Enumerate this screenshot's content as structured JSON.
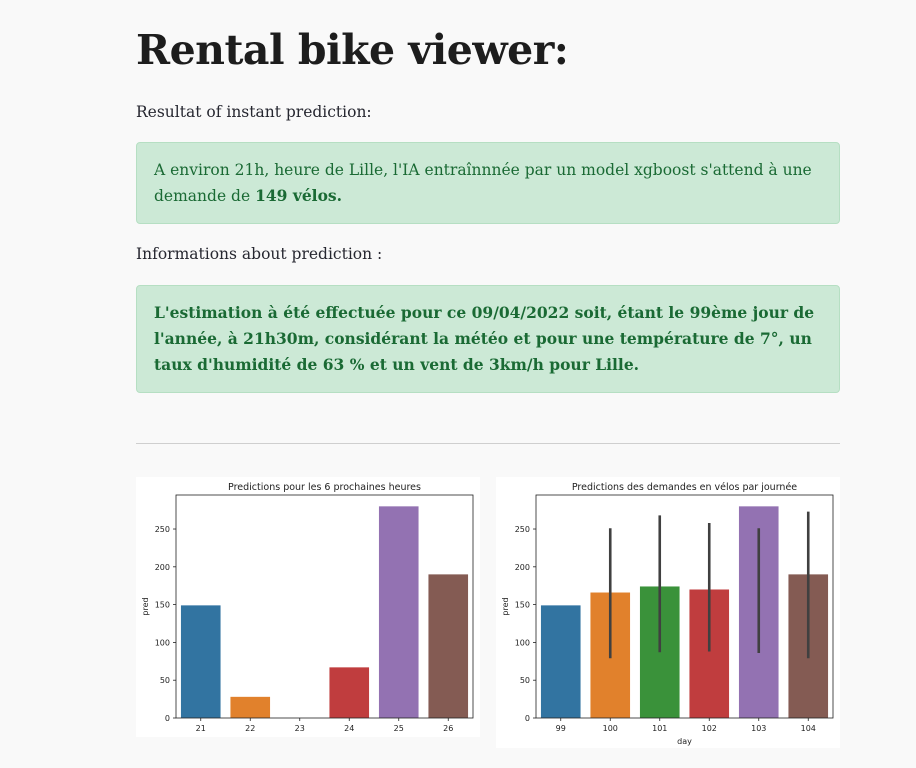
{
  "page": {
    "title": "Rental bike viewer:",
    "instant_label": "Resultat of instant prediction:",
    "instant_text_prefix": "A environ 21h, heure de Lille, l'IA entraînnnée par un model xgboost s'attend à une demande de ",
    "instant_text_bold": "149 vélos.",
    "info_label": "Informations about prediction :",
    "info_text": "L'estimation à été effectuée pour ce 09/04/2022 soit, étant le 99ème jour de l'année, à 21h30m, considérant la météo et pour une température de 7°, un taux d'humidité de 63 % et un vent de 3km/h pour Lille."
  },
  "colors": {
    "success_bg": "#cce9d6",
    "success_text": "#1a6a34",
    "palette": [
      "#3274a1",
      "#e1812c",
      "#3a923a",
      "#c03d3e",
      "#9372b2",
      "#845b53"
    ]
  },
  "chart_data": [
    {
      "type": "bar",
      "title": "Predictions pour les 6 prochaines heures",
      "xlabel": "",
      "ylabel": "pred",
      "categories": [
        "21",
        "22",
        "23",
        "24",
        "25",
        "26"
      ],
      "values": [
        149,
        28,
        0,
        67,
        280,
        190
      ],
      "yticks": [
        "0",
        "50",
        "100",
        "150",
        "200",
        "250"
      ],
      "ylim": [
        0,
        295
      ],
      "error_bars": false
    },
    {
      "type": "bar",
      "title": "Predictions des demandes en vélos par journée",
      "xlabel": "day",
      "ylabel": "pred",
      "categories": [
        "99",
        "100",
        "101",
        "102",
        "103",
        "104"
      ],
      "values": [
        149,
        166,
        174,
        170,
        280,
        190
      ],
      "error_low": [
        null,
        79,
        87,
        88,
        86,
        79
      ],
      "error_high": [
        null,
        251,
        268,
        258,
        251,
        273
      ],
      "yticks": [
        "0",
        "50",
        "100",
        "150",
        "200",
        "250"
      ],
      "ylim": [
        0,
        295
      ],
      "error_bars": true
    }
  ]
}
